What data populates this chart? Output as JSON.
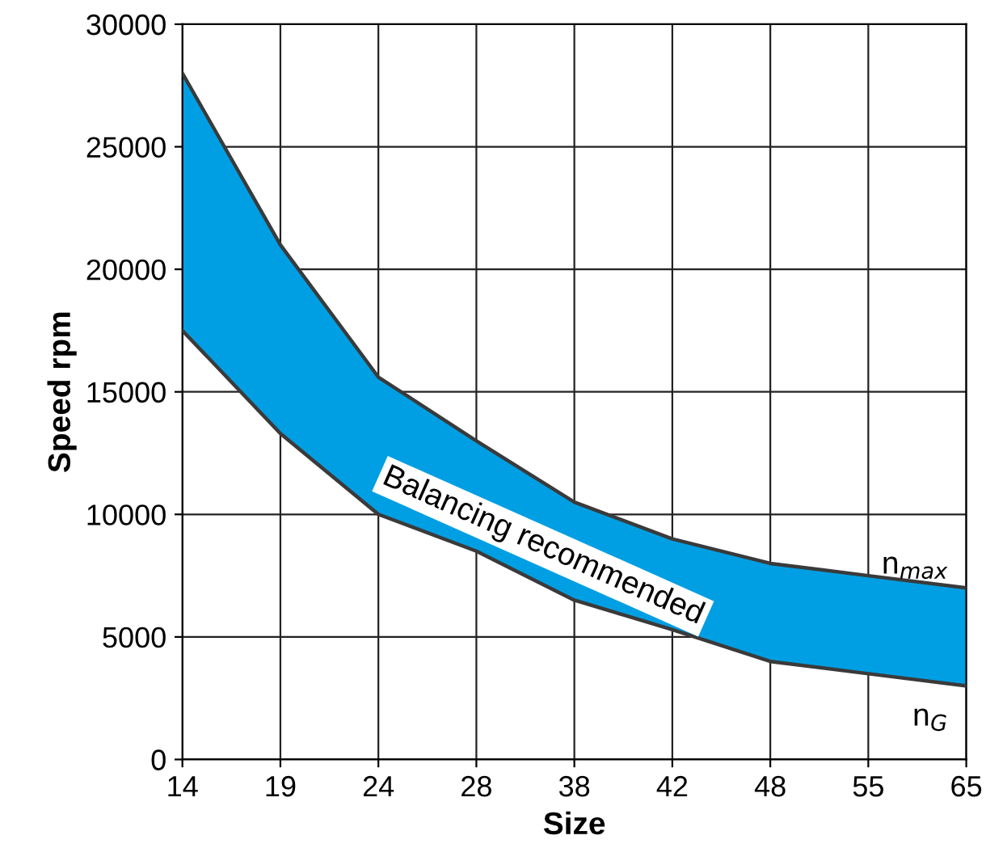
{
  "chart_data": {
    "type": "line",
    "xlabel": "Size",
    "ylabel": "Speed rpm",
    "categories": [
      "14",
      "19",
      "24",
      "28",
      "38",
      "42",
      "48",
      "55",
      "65"
    ],
    "series": [
      {
        "name": "n$_{G}$",
        "color": "#3a3a3a",
        "values": [
          17500,
          13300,
          10000,
          8500,
          6500,
          5300,
          4000,
          3500,
          3000
        ]
      },
      {
        "name": "n$_{max}$",
        "type": "area",
        "color": "#009fe3",
        "values": [
          28000,
          21000,
          15600,
          13000,
          10500,
          9000,
          8000,
          7500,
          7000
        ]
      }
    ],
    "ylim": [
      0,
      30000
    ],
    "yticks": [
      0,
      5000,
      10000,
      15000,
      20000,
      25000,
      30000
    ],
    "grid": true,
    "annotations": [
      "Balancing recommended"
    ]
  }
}
